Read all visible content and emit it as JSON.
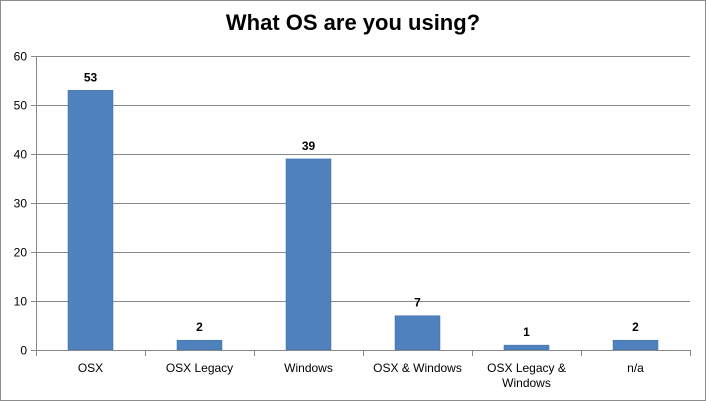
{
  "chart_data": {
    "type": "bar",
    "title": "What OS are you using?",
    "categories": [
      "OSX",
      "OSX Legacy",
      "Windows",
      "OSX & Windows",
      "OSX Legacy & Windows",
      "n/a"
    ],
    "category_lines": [
      [
        "OSX"
      ],
      [
        "OSX Legacy"
      ],
      [
        "Windows"
      ],
      [
        "OSX & Windows"
      ],
      [
        "OSX Legacy &",
        "Windows"
      ],
      [
        "n/a"
      ]
    ],
    "values": [
      53,
      2,
      39,
      7,
      1,
      2
    ],
    "data_labels": [
      "53",
      "2",
      "39",
      "7",
      "1",
      "2"
    ],
    "ylim": [
      0,
      60
    ],
    "yticks": [
      0,
      10,
      20,
      30,
      40,
      50,
      60
    ],
    "ytick_labels": [
      "0",
      "10",
      "20",
      "30",
      "40",
      "50",
      "60"
    ],
    "grid": true,
    "legend": "none",
    "colors": {
      "bar": "#4f81bd",
      "bar_edge": "#3e6ea5",
      "grid": "#888888",
      "axis": "#888888"
    }
  }
}
